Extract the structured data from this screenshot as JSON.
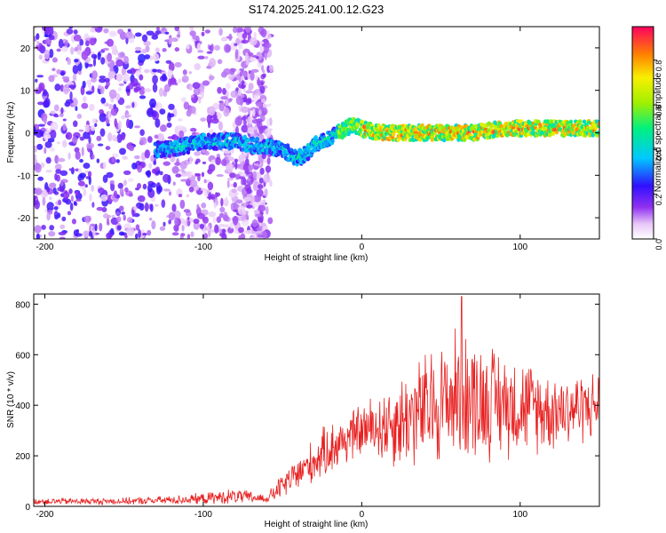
{
  "figure_title": "S174.2025.241.00.12.G23",
  "colors": {
    "line": "#e82020",
    "axis": "#000000",
    "background": "#ffffff"
  },
  "chart_data": [
    {
      "type": "heatmap",
      "title": "S174.2025.241.00.12.G23",
      "xlabel": "Height of straight line (km)",
      "ylabel": "Frequency (Hz)",
      "xlim": [
        -207,
        150
      ],
      "ylim": [
        -25,
        25
      ],
      "xticks": [
        -200,
        -100,
        0,
        100
      ],
      "yticks": [
        -20,
        -10,
        0,
        10,
        20
      ],
      "colorbar": {
        "label": "Normalized spectral amplitude",
        "range": [
          0,
          0.95
        ],
        "ticks": [
          0.0,
          0.2,
          0.4,
          0.6,
          0.8
        ]
      },
      "ridge": [
        {
          "x": -125,
          "y": -4
        },
        {
          "x": -110,
          "y": -3
        },
        {
          "x": -100,
          "y": -2
        },
        {
          "x": -90,
          "y": -2
        },
        {
          "x": -80,
          "y": -2
        },
        {
          "x": -70,
          "y": -3
        },
        {
          "x": -60,
          "y": -3
        },
        {
          "x": -50,
          "y": -4
        },
        {
          "x": -45,
          "y": -5
        },
        {
          "x": -40,
          "y": -6
        },
        {
          "x": -35,
          "y": -5
        },
        {
          "x": -30,
          "y": -3
        },
        {
          "x": -25,
          "y": -2
        },
        {
          "x": -20,
          "y": -1
        },
        {
          "x": -15,
          "y": 0
        },
        {
          "x": -10,
          "y": 1
        },
        {
          "x": -5,
          "y": 2
        },
        {
          "x": 0,
          "y": 1
        },
        {
          "x": 10,
          "y": 0
        },
        {
          "x": 20,
          "y": 0
        },
        {
          "x": 30,
          "y": 0
        },
        {
          "x": 40,
          "y": 0
        },
        {
          "x": 50,
          "y": 0
        },
        {
          "x": 60,
          "y": 0
        },
        {
          "x": 70,
          "y": 0
        },
        {
          "x": 80,
          "y": 0.5
        },
        {
          "x": 90,
          "y": 1
        },
        {
          "x": 100,
          "y": 1
        },
        {
          "x": 110,
          "y": 1
        },
        {
          "x": 120,
          "y": 1
        },
        {
          "x": 130,
          "y": 1
        },
        {
          "x": 140,
          "y": 1
        },
        {
          "x": 150,
          "y": 1
        }
      ]
    },
    {
      "type": "line",
      "xlabel": "Height of straight line (km)",
      "ylabel": "SNR (10 * v/v)",
      "xlim": [
        -207,
        150
      ],
      "ylim": [
        0,
        840
      ],
      "xticks": [
        -200,
        -100,
        0,
        100
      ],
      "yticks": [
        0,
        200,
        400,
        600,
        800
      ],
      "envelope": [
        {
          "x": -207,
          "mean": 20,
          "amp": 15
        },
        {
          "x": -150,
          "mean": 20,
          "amp": 15
        },
        {
          "x": -120,
          "mean": 25,
          "amp": 20
        },
        {
          "x": -100,
          "mean": 30,
          "amp": 25
        },
        {
          "x": -80,
          "mean": 40,
          "amp": 35
        },
        {
          "x": -60,
          "mean": 30,
          "amp": 20
        },
        {
          "x": -50,
          "mean": 80,
          "amp": 60
        },
        {
          "x": -40,
          "mean": 130,
          "amp": 80
        },
        {
          "x": -20,
          "mean": 230,
          "amp": 120
        },
        {
          "x": 0,
          "mean": 300,
          "amp": 120
        },
        {
          "x": 20,
          "mean": 330,
          "amp": 200
        },
        {
          "x": 40,
          "mean": 380,
          "amp": 260
        },
        {
          "x": 60,
          "mean": 440,
          "amp": 300
        },
        {
          "x": 80,
          "mean": 420,
          "amp": 260
        },
        {
          "x": 100,
          "mean": 400,
          "amp": 220
        },
        {
          "x": 120,
          "mean": 380,
          "amp": 180
        },
        {
          "x": 150,
          "mean": 400,
          "amp": 150
        }
      ],
      "peak": {
        "x": 63,
        "y": 830
      }
    }
  ]
}
